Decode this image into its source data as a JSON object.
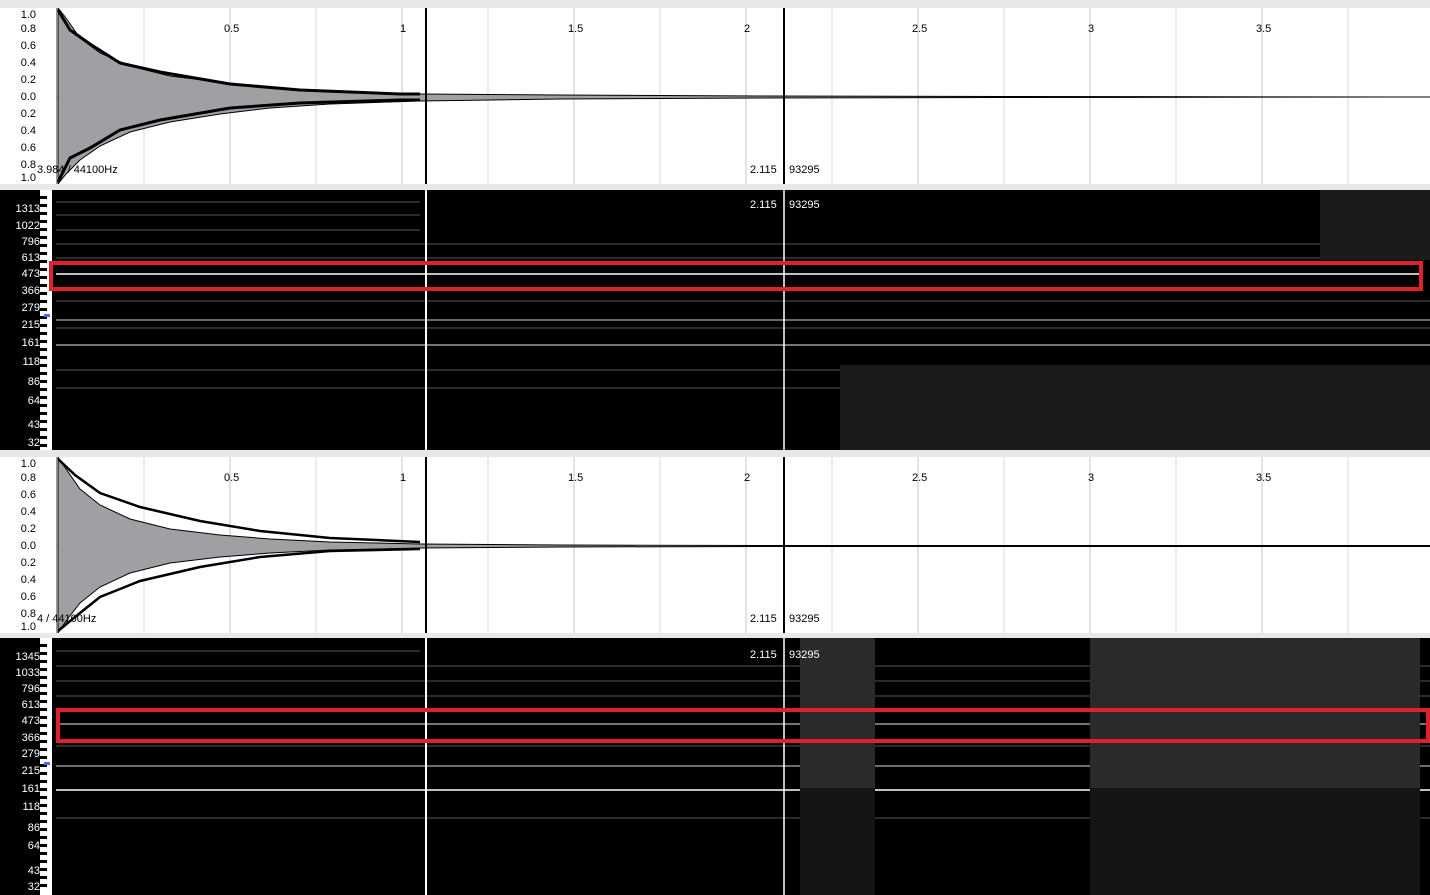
{
  "waveform_top": {
    "info_left": "3.984 / 44100Hz",
    "cursor_time": "2.115",
    "cursor_sample": "93295",
    "y_ticks": [
      "1.0",
      "0.8",
      "0.6",
      "0.4",
      "0.2",
      "0.0",
      "0.2",
      "0.4",
      "0.6",
      "0.8",
      "1.0"
    ],
    "time_ticks": [
      "0.5",
      "1",
      "1.5",
      "2",
      "2.5",
      "3",
      "3.5"
    ]
  },
  "spectrogram_top": {
    "cursor_time": "2.115",
    "cursor_sample": "93295",
    "freq_ticks": [
      "1313",
      "1022",
      "796",
      "613",
      "473",
      "366",
      "279",
      "215",
      "161",
      "118",
      "86",
      "64",
      "43",
      "32"
    ]
  },
  "waveform_bottom": {
    "info_left": "4 / 44100Hz",
    "cursor_time": "2.115",
    "cursor_sample": "93295",
    "y_ticks": [
      "1.0",
      "0.8",
      "0.6",
      "0.4",
      "0.2",
      "0.0",
      "0.2",
      "0.4",
      "0.6",
      "0.8",
      "1.0"
    ],
    "time_ticks": [
      "0.5",
      "1",
      "1.5",
      "2",
      "2.5",
      "3",
      "3.5"
    ]
  },
  "spectrogram_bottom": {
    "cursor_time": "2.115",
    "cursor_sample": "93295",
    "freq_ticks": [
      "1345",
      "1033",
      "796",
      "613",
      "473",
      "366",
      "279",
      "215",
      "161",
      "118",
      "86",
      "64",
      "43",
      "32"
    ]
  },
  "colors": {
    "highlight": "#e0202a",
    "wave_fill": "#a0a0a4",
    "wave_edge": "#000000"
  }
}
